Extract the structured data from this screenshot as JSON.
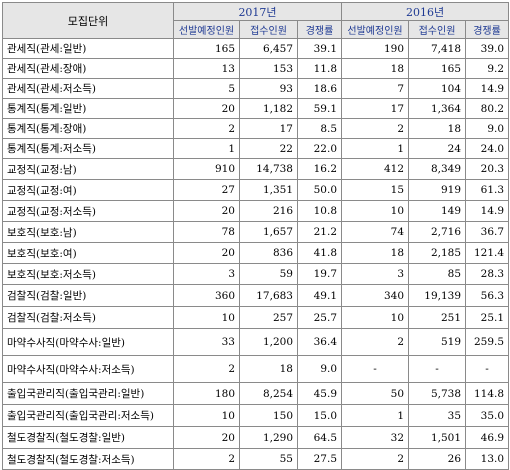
{
  "header": {
    "unit": "모집단위",
    "years": [
      "2017년",
      "2016년"
    ],
    "subheaders": [
      "선발예정인원",
      "접수인원",
      "경쟁률",
      "선발예정인원",
      "접수인원",
      "경쟁률"
    ]
  },
  "rows": [
    {
      "name": "관세직(관세:일반)",
      "values": [
        "165",
        "6,457",
        "39.1",
        "190",
        "7,418",
        "39.0"
      ]
    },
    {
      "name": "관세직(관세:장애)",
      "values": [
        "13",
        "153",
        "11.8",
        "18",
        "165",
        "9.2"
      ]
    },
    {
      "name": "관세직(관세:저소득)",
      "values": [
        "5",
        "93",
        "18.6",
        "7",
        "104",
        "14.9"
      ]
    },
    {
      "name": "통계직(통계:일반)",
      "values": [
        "20",
        "1,182",
        "59.1",
        "17",
        "1,364",
        "80.2"
      ]
    },
    {
      "name": "통계직(통계:장애)",
      "values": [
        "2",
        "17",
        "8.5",
        "2",
        "18",
        "9.0"
      ]
    },
    {
      "name": "통계직(통계:저소득)",
      "values": [
        "1",
        "22",
        "22.0",
        "1",
        "24",
        "24.0"
      ]
    },
    {
      "name": "교정직(교정:남)",
      "values": [
        "910",
        "14,738",
        "16.2",
        "412",
        "8,349",
        "20.3"
      ]
    },
    {
      "name": "교정직(교정:여)",
      "values": [
        "27",
        "1,351",
        "50.0",
        "15",
        "919",
        "61.3"
      ]
    },
    {
      "name": "교정직(교정:저소득)",
      "values": [
        "20",
        "216",
        "10.8",
        "10",
        "149",
        "14.9"
      ]
    },
    {
      "name": "보호직(보호:남)",
      "values": [
        "78",
        "1,657",
        "21.2",
        "74",
        "2,716",
        "36.7"
      ]
    },
    {
      "name": "보호직(보호:여)",
      "values": [
        "20",
        "836",
        "41.8",
        "18",
        "2,185",
        "121.4"
      ]
    },
    {
      "name": "보호직(보호:저소득)",
      "values": [
        "3",
        "59",
        "19.7",
        "3",
        "85",
        "28.3"
      ]
    },
    {
      "name": "검찰직(검찰:일반)",
      "values": [
        "360",
        "17,683",
        "49.1",
        "340",
        "19,139",
        "56.3"
      ]
    },
    {
      "name": "검찰직(검찰:저소득)",
      "values": [
        "10",
        "257",
        "25.7",
        "10",
        "251",
        "25.1"
      ]
    },
    {
      "name": "마약수사직(마약수사:일반)",
      "values": [
        "33",
        "1,200",
        "36.4",
        "2",
        "519",
        "259.5"
      ]
    },
    {
      "name": "마약수사직(마약수사:저소득)",
      "values": [
        "2",
        "18",
        "9.0",
        "-",
        "-",
        "-"
      ]
    },
    {
      "name": "출입국관리직(출입국관리:일반)",
      "values": [
        "180",
        "8,254",
        "45.9",
        "50",
        "5,738",
        "114.8"
      ]
    },
    {
      "name": "출입국관리직(출입국관리:저소득)",
      "values": [
        "10",
        "150",
        "15.0",
        "1",
        "35",
        "35.0"
      ]
    },
    {
      "name": "철도경찰직(철도경찰:일반)",
      "values": [
        "20",
        "1,290",
        "64.5",
        "32",
        "1,501",
        "46.9"
      ]
    },
    {
      "name": "철도경찰직(철도경찰:저소득)",
      "values": [
        "2",
        "55",
        "27.5",
        "2",
        "26",
        "13.0"
      ]
    }
  ]
}
